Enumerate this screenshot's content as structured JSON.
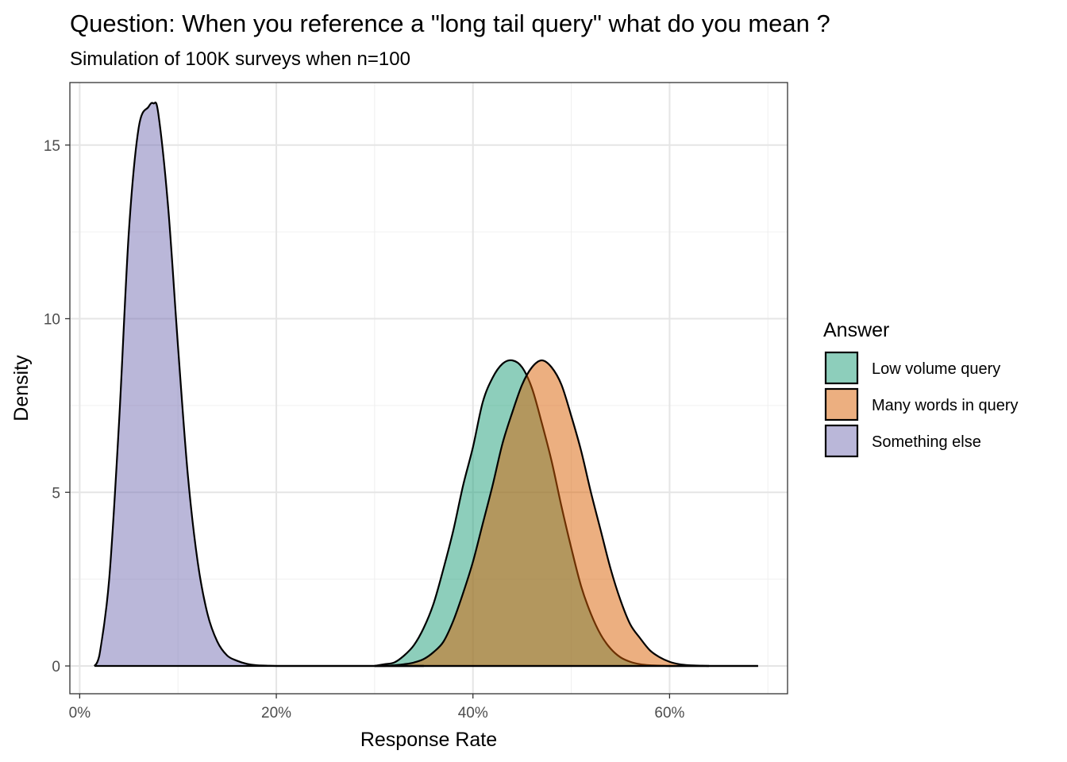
{
  "chart_data": {
    "type": "area",
    "subtype": "density",
    "title": "Question: When you reference a \"long tail query\" what do you mean ?",
    "subtitle": "Simulation of 100K surveys when n=100",
    "xlabel": "Response Rate",
    "ylabel": "Density",
    "xlim": [
      -0.01,
      0.72
    ],
    "ylim": [
      -0.8,
      16.8
    ],
    "x_ticks": [
      0,
      0.2,
      0.4,
      0.6
    ],
    "x_tick_labels": [
      "0%",
      "20%",
      "40%",
      "60%"
    ],
    "y_ticks": [
      0,
      5,
      10,
      15
    ],
    "y_tick_labels": [
      "0",
      "5",
      "10",
      "15"
    ],
    "grid": true,
    "legend": {
      "title": "Answer",
      "position": "right"
    },
    "series": [
      {
        "name": "Low volume query",
        "color": "#1b9e77",
        "x": [
          0.3,
          0.31,
          0.32,
          0.33,
          0.34,
          0.35,
          0.36,
          0.37,
          0.38,
          0.39,
          0.4,
          0.41,
          0.42,
          0.43,
          0.44,
          0.45,
          0.46,
          0.47,
          0.48,
          0.49,
          0.5,
          0.51,
          0.52,
          0.53,
          0.54,
          0.55,
          0.56,
          0.57,
          0.58,
          0.59,
          0.6,
          0.61,
          0.62,
          0.63,
          0.64
        ],
        "values": [
          0.0,
          0.05,
          0.1,
          0.3,
          0.6,
          1.1,
          1.8,
          2.8,
          3.9,
          5.2,
          6.3,
          7.6,
          8.3,
          8.7,
          8.8,
          8.6,
          8.0,
          7.0,
          5.9,
          4.6,
          3.4,
          2.3,
          1.5,
          0.9,
          0.5,
          0.25,
          0.12,
          0.05,
          0.02,
          0.01,
          0.0,
          0.0,
          0.0,
          0.0,
          0.0
        ]
      },
      {
        "name": "Many words in query",
        "color": "#d95f02",
        "x": [
          0.3,
          0.31,
          0.32,
          0.33,
          0.34,
          0.35,
          0.36,
          0.37,
          0.38,
          0.39,
          0.4,
          0.41,
          0.42,
          0.43,
          0.44,
          0.45,
          0.46,
          0.47,
          0.48,
          0.49,
          0.5,
          0.51,
          0.52,
          0.53,
          0.54,
          0.55,
          0.56,
          0.57,
          0.58,
          0.59,
          0.6,
          0.61,
          0.62,
          0.63,
          0.64,
          0.65,
          0.66,
          0.67,
          0.68,
          0.69
        ],
        "values": [
          0.0,
          0.0,
          0.02,
          0.05,
          0.1,
          0.2,
          0.4,
          0.7,
          1.3,
          2.1,
          3.0,
          4.1,
          5.2,
          6.4,
          7.3,
          8.1,
          8.6,
          8.8,
          8.6,
          8.1,
          7.2,
          6.2,
          5.0,
          3.9,
          2.8,
          1.9,
          1.2,
          0.8,
          0.45,
          0.25,
          0.12,
          0.05,
          0.02,
          0.01,
          0.0,
          0.0,
          0.0,
          0.0,
          0.0,
          0.0
        ]
      },
      {
        "name": "Something else",
        "color": "#7570b3",
        "x": [
          0.015,
          0.02,
          0.03,
          0.04,
          0.05,
          0.06,
          0.07,
          0.075,
          0.08,
          0.09,
          0.1,
          0.11,
          0.12,
          0.13,
          0.14,
          0.15,
          0.16,
          0.17,
          0.18,
          0.19,
          0.2,
          0.22,
          0.25,
          0.3,
          0.35
        ],
        "values": [
          0.0,
          0.3,
          2.5,
          7.0,
          12.5,
          15.5,
          16.1,
          16.2,
          15.9,
          13.2,
          9.2,
          5.5,
          3.0,
          1.5,
          0.7,
          0.3,
          0.15,
          0.06,
          0.02,
          0.01,
          0.0,
          0.0,
          0.0,
          0.0,
          0.0
        ]
      }
    ]
  }
}
